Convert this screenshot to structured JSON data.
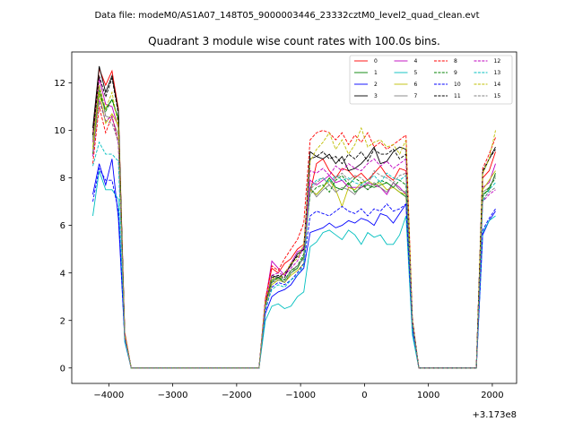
{
  "figure": {
    "suptitle": "Data file: modeM0/AS1A07_148T05_9000003446_23332cztM0_level2_quad_clean.evt"
  },
  "chart_data": {
    "type": "line",
    "title": "Quadrant 3 module wise count rates with 100.0s bins.",
    "xlabel": "",
    "ylabel": "",
    "x_offset_label": "+3.173e8",
    "xlim": [
      -4580,
      2380
    ],
    "ylim": [
      -0.65,
      13.3
    ],
    "x_ticks": [
      -4000,
      -3000,
      -2000,
      -1000,
      0,
      1000,
      2000
    ],
    "x_tick_labels": [
      "−4000",
      "−3000",
      "−2000",
      "−1000",
      "0",
      "1000",
      "2000"
    ],
    "y_ticks": [
      0,
      2,
      4,
      6,
      8,
      10,
      12
    ],
    "y_tick_labels": [
      "0",
      "2",
      "4",
      "6",
      "8",
      "10",
      "12"
    ],
    "grid": false,
    "legend_position": "top-right",
    "legend_columns": 4,
    "x": [
      -4250,
      -4150,
      -4050,
      -3950,
      -3850,
      -3750,
      -3650,
      -3550,
      -3450,
      -3350,
      -3250,
      -3150,
      -3050,
      -2950,
      -2850,
      -2750,
      -2650,
      -2550,
      -2450,
      -2350,
      -2250,
      -2150,
      -2050,
      -1950,
      -1850,
      -1750,
      -1650,
      -1550,
      -1450,
      -1350,
      -1250,
      -1150,
      -1050,
      -950,
      -850,
      -750,
      -650,
      -550,
      -450,
      -350,
      -250,
      -150,
      -50,
      50,
      150,
      250,
      350,
      450,
      550,
      650,
      750,
      850,
      950,
      1050,
      1150,
      1250,
      1350,
      1450,
      1550,
      1650,
      1750,
      1850,
      1950,
      2050
    ],
    "series": [
      {
        "name": "0",
        "color": "#ff0000",
        "dash": "solid",
        "values": [
          9.8,
          12.6,
          11.9,
          12.5,
          10.9,
          1.5,
          0,
          0,
          0,
          0,
          0,
          0,
          0,
          0,
          0,
          0,
          0,
          0,
          0,
          0,
          0,
          0,
          0,
          0,
          0,
          0,
          0,
          2.9,
          4.2,
          4.0,
          4.4,
          4.6,
          5.0,
          5.2,
          7.4,
          8.6,
          8.8,
          8.3,
          8.0,
          8.4,
          8.3,
          8.0,
          8.2,
          7.9,
          8.2,
          8.5,
          8.1,
          7.9,
          8.4,
          8.3,
          1.9,
          0,
          0,
          0,
          0,
          0,
          0,
          0,
          0,
          0,
          0,
          8.0,
          8.3,
          9.1
        ]
      },
      {
        "name": "1",
        "color": "#008000",
        "dash": "solid",
        "values": [
          9.7,
          11.5,
          10.9,
          11.3,
          10.5,
          1.3,
          0,
          0,
          0,
          0,
          0,
          0,
          0,
          0,
          0,
          0,
          0,
          0,
          0,
          0,
          0,
          0,
          0,
          0,
          0,
          0,
          0,
          2.8,
          3.7,
          3.8,
          3.6,
          4.0,
          4.2,
          4.7,
          7.5,
          7.3,
          7.6,
          8.0,
          7.6,
          7.5,
          7.8,
          7.4,
          7.6,
          7.7,
          7.6,
          7.7,
          7.8,
          7.6,
          7.4,
          7.2,
          1.9,
          0,
          0,
          0,
          0,
          0,
          0,
          0,
          0,
          0,
          0,
          7.3,
          7.5,
          8.2
        ]
      },
      {
        "name": "2",
        "color": "#0000ff",
        "dash": "solid",
        "values": [
          7.3,
          8.6,
          7.7,
          8.8,
          6.3,
          1.2,
          0,
          0,
          0,
          0,
          0,
          0,
          0,
          0,
          0,
          0,
          0,
          0,
          0,
          0,
          0,
          0,
          0,
          0,
          0,
          0,
          0,
          2.3,
          3.0,
          3.2,
          3.3,
          3.5,
          3.9,
          4.2,
          5.7,
          5.8,
          5.9,
          6.1,
          5.9,
          6.0,
          6.2,
          6.1,
          6.3,
          6.2,
          6.0,
          6.5,
          6.4,
          6.1,
          6.5,
          6.9,
          1.6,
          0,
          0,
          0,
          0,
          0,
          0,
          0,
          0,
          0,
          0,
          5.6,
          6.2,
          6.6
        ]
      },
      {
        "name": "3",
        "color": "#000000",
        "dash": "solid",
        "values": [
          10.1,
          12.7,
          11.6,
          12.3,
          10.8,
          1.4,
          0,
          0,
          0,
          0,
          0,
          0,
          0,
          0,
          0,
          0,
          0,
          0,
          0,
          0,
          0,
          0,
          0,
          0,
          0,
          0,
          0,
          2.7,
          3.9,
          3.8,
          4.0,
          4.3,
          4.8,
          5.0,
          9.1,
          8.9,
          8.8,
          9.0,
          8.6,
          8.9,
          8.3,
          8.4,
          8.6,
          8.9,
          9.3,
          8.6,
          8.7,
          9.1,
          9.3,
          9.2,
          2.0,
          0,
          0,
          0,
          0,
          0,
          0,
          0,
          0,
          0,
          0,
          8.2,
          8.8,
          9.3
        ]
      },
      {
        "name": "4",
        "color": "#bf00bf",
        "dash": "solid",
        "values": [
          9.5,
          12.2,
          11.1,
          11.0,
          10.1,
          1.4,
          0,
          0,
          0,
          0,
          0,
          0,
          0,
          0,
          0,
          0,
          0,
          0,
          0,
          0,
          0,
          0,
          0,
          0,
          0,
          0,
          0,
          2.8,
          4.5,
          4.2,
          3.9,
          4.4,
          4.9,
          5.0,
          7.9,
          7.7,
          7.9,
          8.1,
          7.8,
          7.9,
          7.6,
          7.6,
          7.6,
          7.8,
          7.7,
          7.6,
          7.3,
          7.8,
          7.6,
          7.3,
          1.9,
          0,
          0,
          0,
          0,
          0,
          0,
          0,
          0,
          0,
          0,
          7.6,
          7.8,
          8.6
        ]
      },
      {
        "name": "5",
        "color": "#00bfbf",
        "dash": "solid",
        "values": [
          6.4,
          8.3,
          7.5,
          7.5,
          7.1,
          1.1,
          0,
          0,
          0,
          0,
          0,
          0,
          0,
          0,
          0,
          0,
          0,
          0,
          0,
          0,
          0,
          0,
          0,
          0,
          0,
          0,
          0,
          2.0,
          2.6,
          2.7,
          2.5,
          2.6,
          3.0,
          3.2,
          5.1,
          5.3,
          5.7,
          5.8,
          5.6,
          5.4,
          5.8,
          5.6,
          5.2,
          5.7,
          5.5,
          5.6,
          5.2,
          5.2,
          5.6,
          6.4,
          1.4,
          0,
          0,
          0,
          0,
          0,
          0,
          0,
          0,
          0,
          0,
          5.7,
          6.2,
          6.4
        ]
      },
      {
        "name": "6",
        "color": "#bfbf00",
        "dash": "solid",
        "values": [
          9.3,
          11.6,
          10.3,
          10.7,
          10.2,
          1.3,
          0,
          0,
          0,
          0,
          0,
          0,
          0,
          0,
          0,
          0,
          0,
          0,
          0,
          0,
          0,
          0,
          0,
          0,
          0,
          0,
          0,
          2.6,
          3.5,
          3.7,
          3.6,
          3.9,
          4.1,
          4.4,
          7.5,
          7.3,
          7.6,
          7.9,
          7.5,
          6.8,
          7.6,
          7.5,
          7.8,
          7.9,
          7.7,
          7.8,
          7.5,
          7.6,
          7.4,
          7.3,
          1.8,
          0,
          0,
          0,
          0,
          0,
          0,
          0,
          0,
          0,
          0,
          7.5,
          7.9,
          8.3
        ]
      },
      {
        "name": "7",
        "color": "#808080",
        "dash": "solid",
        "values": [
          9.6,
          11.9,
          10.6,
          10.5,
          9.8,
          1.3,
          0,
          0,
          0,
          0,
          0,
          0,
          0,
          0,
          0,
          0,
          0,
          0,
          0,
          0,
          0,
          0,
          0,
          0,
          0,
          0,
          0,
          2.7,
          3.6,
          3.9,
          3.7,
          4.1,
          4.3,
          4.6,
          7.6,
          7.2,
          7.5,
          7.7,
          7.4,
          7.6,
          7.5,
          7.3,
          7.7,
          7.5,
          7.8,
          7.6,
          7.4,
          7.8,
          7.5,
          7.4,
          1.8,
          0,
          0,
          0,
          0,
          0,
          0,
          0,
          0,
          0,
          0,
          7.4,
          7.6,
          8.1
        ]
      },
      {
        "name": "8",
        "color": "#ff0000",
        "dash": "dashed",
        "values": [
          8.6,
          11.0,
          9.9,
          10.6,
          9.5,
          1.4,
          0,
          0,
          0,
          0,
          0,
          0,
          0,
          0,
          0,
          0,
          0,
          0,
          0,
          0,
          0,
          0,
          0,
          0,
          0,
          0,
          0,
          2.9,
          4.3,
          4.1,
          4.6,
          5.0,
          5.4,
          6.1,
          9.6,
          9.9,
          10.0,
          9.9,
          9.6,
          9.9,
          9.4,
          9.8,
          9.5,
          9.9,
          9.3,
          9.5,
          9.2,
          9.4,
          9.6,
          9.8,
          2.1,
          0,
          0,
          0,
          0,
          0,
          0,
          0,
          0,
          0,
          0,
          8.4,
          9.0,
          9.7
        ]
      },
      {
        "name": "9",
        "color": "#008000",
        "dash": "dashed",
        "values": [
          9.0,
          11.7,
          10.8,
          11.3,
          10.4,
          1.3,
          0,
          0,
          0,
          0,
          0,
          0,
          0,
          0,
          0,
          0,
          0,
          0,
          0,
          0,
          0,
          0,
          0,
          0,
          0,
          0,
          0,
          2.7,
          3.6,
          3.8,
          3.7,
          4.1,
          4.3,
          4.8,
          7.3,
          7.6,
          7.7,
          7.4,
          7.9,
          8.1,
          7.7,
          8.0,
          7.8,
          7.5,
          7.7,
          7.9,
          7.8,
          7.6,
          7.9,
          7.7,
          1.9,
          0,
          0,
          0,
          0,
          0,
          0,
          0,
          0,
          0,
          0,
          7.2,
          7.6,
          8.0
        ]
      },
      {
        "name": "10",
        "color": "#0000ff",
        "dash": "dashed",
        "values": [
          7.0,
          8.4,
          7.9,
          7.9,
          6.6,
          1.2,
          0,
          0,
          0,
          0,
          0,
          0,
          0,
          0,
          0,
          0,
          0,
          0,
          0,
          0,
          0,
          0,
          0,
          0,
          0,
          0,
          0,
          2.4,
          3.4,
          3.6,
          3.5,
          3.7,
          4.0,
          4.4,
          6.4,
          6.6,
          6.5,
          6.4,
          6.6,
          6.8,
          6.6,
          6.5,
          6.7,
          6.4,
          6.7,
          6.6,
          6.9,
          6.6,
          6.7,
          6.9,
          1.7,
          0,
          0,
          0,
          0,
          0,
          0,
          0,
          0,
          0,
          0,
          5.8,
          6.3,
          6.7
        ]
      },
      {
        "name": "11",
        "color": "#000000",
        "dash": "dashed",
        "values": [
          9.8,
          12.3,
          11.4,
          12.2,
          10.7,
          1.4,
          0,
          0,
          0,
          0,
          0,
          0,
          0,
          0,
          0,
          0,
          0,
          0,
          0,
          0,
          0,
          0,
          0,
          0,
          0,
          0,
          0,
          2.7,
          3.8,
          3.9,
          3.8,
          4.4,
          4.7,
          5.0,
          8.8,
          8.9,
          9.1,
          8.8,
          8.9,
          8.6,
          9.0,
          8.8,
          9.1,
          8.7,
          9.2,
          9.0,
          9.0,
          9.2,
          8.8,
          9.0,
          2.0,
          0,
          0,
          0,
          0,
          0,
          0,
          0,
          0,
          0,
          0,
          8.3,
          8.8,
          9.2
        ]
      },
      {
        "name": "12",
        "color": "#bf00bf",
        "dash": "dashed",
        "values": [
          8.9,
          11.3,
          10.4,
          10.6,
          9.4,
          1.3,
          0,
          0,
          0,
          0,
          0,
          0,
          0,
          0,
          0,
          0,
          0,
          0,
          0,
          0,
          0,
          0,
          0,
          0,
          0,
          0,
          0,
          2.8,
          3.9,
          4.0,
          3.9,
          4.2,
          4.5,
          5.1,
          8.3,
          8.2,
          8.4,
          8.1,
          8.5,
          8.3,
          8.6,
          8.4,
          8.3,
          8.6,
          8.8,
          8.5,
          8.7,
          8.4,
          8.6,
          8.8,
          1.9,
          0,
          0,
          0,
          0,
          0,
          0,
          0,
          0,
          0,
          0,
          7.0,
          7.3,
          7.5
        ]
      },
      {
        "name": "13",
        "color": "#00bfbf",
        "dash": "dashed",
        "values": [
          8.5,
          9.5,
          9.0,
          9.0,
          8.7,
          1.3,
          0,
          0,
          0,
          0,
          0,
          0,
          0,
          0,
          0,
          0,
          0,
          0,
          0,
          0,
          0,
          0,
          0,
          0,
          0,
          0,
          0,
          2.5,
          3.3,
          3.5,
          3.4,
          3.7,
          3.9,
          4.3,
          7.6,
          7.9,
          8.0,
          7.8,
          8.1,
          7.9,
          8.0,
          7.8,
          7.7,
          7.9,
          8.1,
          7.8,
          8.2,
          8.0,
          7.9,
          8.1,
          1.8,
          0,
          0,
          0,
          0,
          0,
          0,
          0,
          0,
          0,
          0,
          7.0,
          7.5,
          7.8
        ]
      },
      {
        "name": "14",
        "color": "#bfbf00",
        "dash": "dashed",
        "values": [
          9.2,
          11.9,
          10.9,
          11.6,
          10.2,
          1.4,
          0,
          0,
          0,
          0,
          0,
          0,
          0,
          0,
          0,
          0,
          0,
          0,
          0,
          0,
          0,
          0,
          0,
          0,
          0,
          0,
          0,
          2.8,
          3.8,
          3.7,
          4.0,
          4.4,
          4.6,
          5.2,
          8.7,
          9.2,
          9.5,
          9.9,
          9.2,
          9.6,
          9.0,
          9.4,
          10.1,
          9.3,
          9.5,
          9.6,
          9.3,
          9.4,
          9.0,
          9.6,
          2.0,
          0,
          0,
          0,
          0,
          0,
          0,
          0,
          0,
          0,
          0,
          8.2,
          8.8,
          10.0
        ]
      },
      {
        "name": "15",
        "color": "#808080",
        "dash": "dashed",
        "values": [
          9.1,
          11.2,
          10.4,
          10.3,
          9.5,
          1.3,
          0,
          0,
          0,
          0,
          0,
          0,
          0,
          0,
          0,
          0,
          0,
          0,
          0,
          0,
          0,
          0,
          0,
          0,
          0,
          0,
          0,
          2.6,
          3.6,
          3.7,
          3.6,
          4.0,
          4.3,
          4.6,
          7.5,
          7.8,
          8.0,
          7.7,
          8.0,
          8.2,
          7.9,
          8.1,
          8.0,
          7.7,
          8.3,
          8.1,
          8.0,
          7.8,
          8.1,
          8.2,
          1.9,
          0,
          0,
          0,
          0,
          0,
          0,
          0,
          0,
          0,
          0,
          7.1,
          7.4,
          7.6
        ]
      }
    ]
  }
}
